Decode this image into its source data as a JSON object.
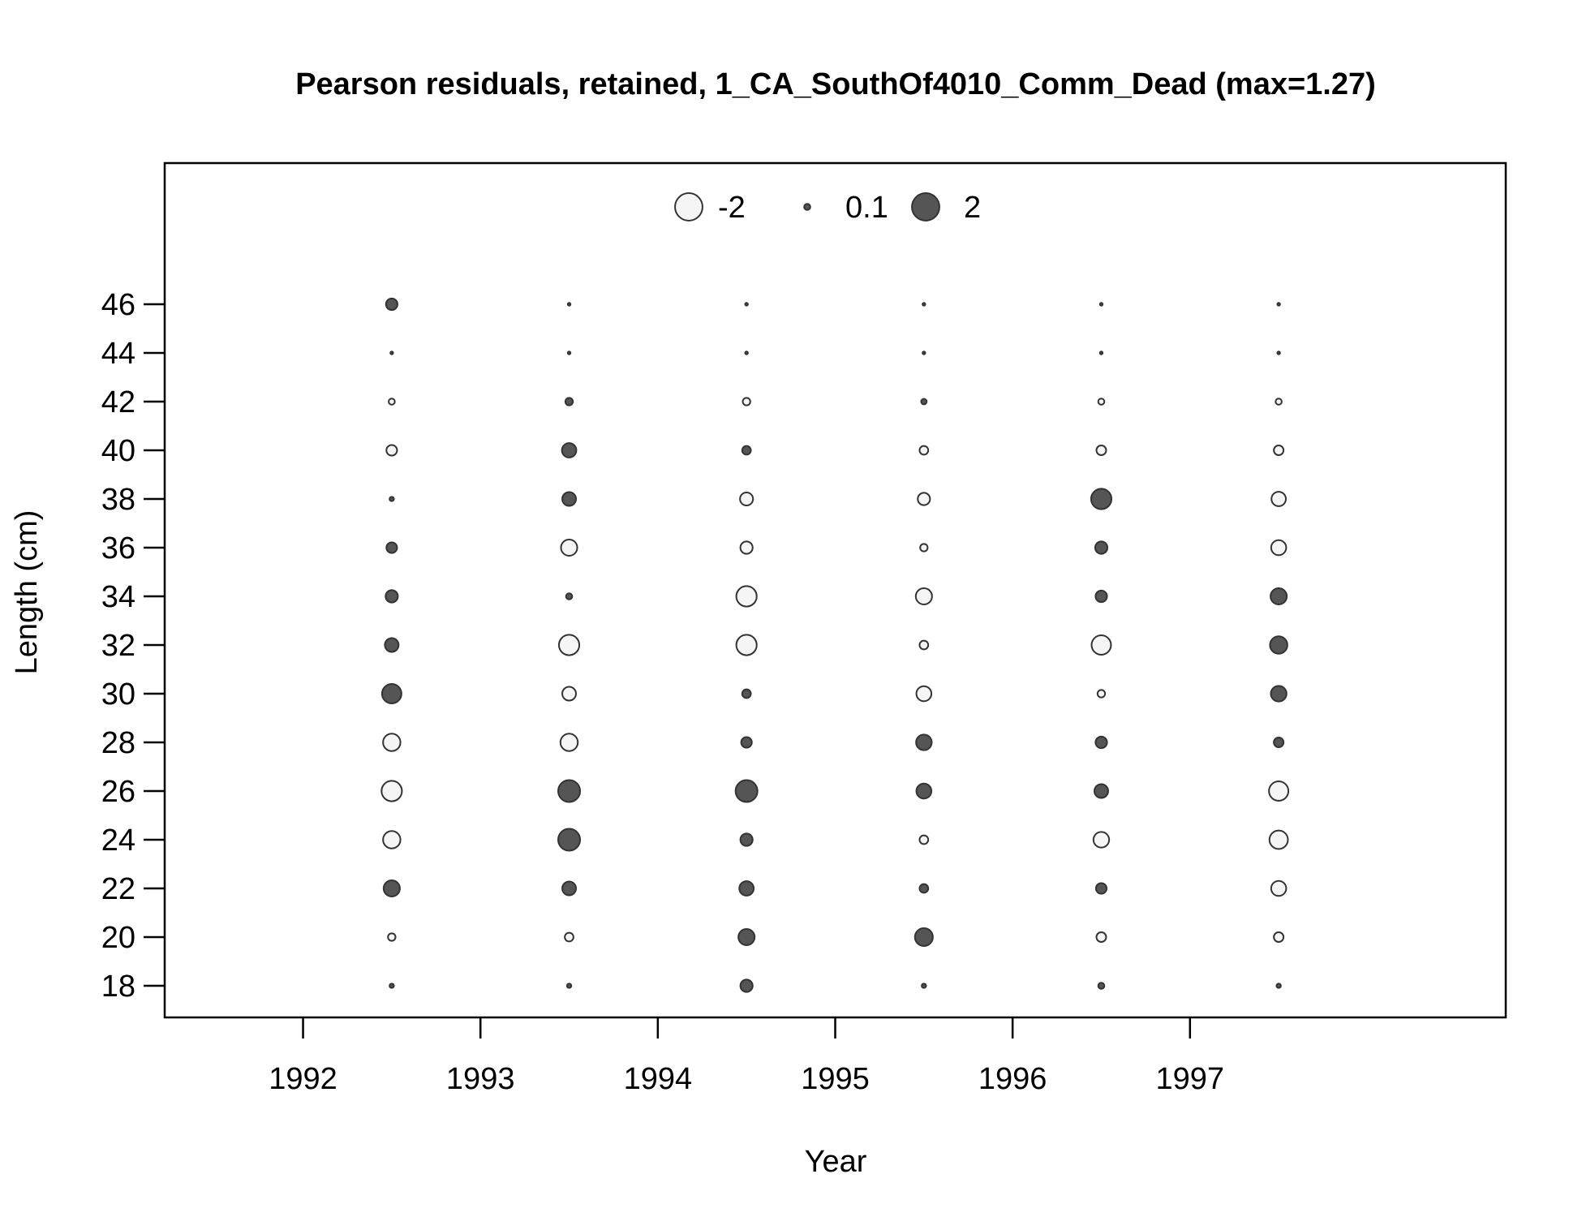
{
  "chart_data": {
    "type": "scatter",
    "subtype": "bubble",
    "title": "Pearson residuals, retained, 1_CA_SouthOf4010_Comm_Dead (max=1.27)",
    "xlabel": "Year",
    "ylabel": "Length (cm)",
    "xlim": [
      1991.22,
      1998.78
    ],
    "ylim": [
      16.7,
      51.8
    ],
    "x_ticks": [
      1992,
      1993,
      1994,
      1995,
      1996,
      1997
    ],
    "y_ticks": [
      18,
      20,
      22,
      24,
      26,
      28,
      30,
      32,
      34,
      36,
      38,
      40,
      42,
      44,
      46
    ],
    "grid": false,
    "legend": {
      "position": "top-center",
      "entries": [
        {
          "label": "-2",
          "value": -2
        },
        {
          "label": "0.1",
          "value": 0.1
        },
        {
          "label": "2",
          "value": 2
        }
      ]
    },
    "colors": {
      "positive": "#555555",
      "negative": "#f5f5f5",
      "outline": "#333333"
    },
    "x": [
      1992.5,
      1993.5,
      1994.5,
      1995.5,
      1996.5,
      1997.5
    ],
    "lengths": [
      18,
      20,
      22,
      24,
      26,
      28,
      30,
      32,
      34,
      36,
      38,
      40,
      42,
      44,
      46
    ],
    "residuals": [
      [
        0.05,
        -0.15,
        0.7,
        -0.8,
        -1.1,
        -0.8,
        1.0,
        0.5,
        0.4,
        0.3,
        0.05,
        -0.3,
        -0.1,
        0.02,
        0.35
      ],
      [
        0.05,
        -0.2,
        0.5,
        1.27,
        1.27,
        -0.8,
        -0.5,
        -1.1,
        0.1,
        -0.7,
        0.5,
        0.55,
        0.15,
        0.02,
        0.02
      ],
      [
        0.4,
        0.7,
        0.55,
        0.4,
        1.27,
        0.3,
        0.2,
        -1.1,
        -1.1,
        -0.4,
        -0.45,
        0.2,
        -0.15,
        0.02,
        0.02
      ],
      [
        0.05,
        0.85,
        0.2,
        -0.2,
        0.6,
        0.65,
        -0.6,
        -0.2,
        -0.7,
        -0.15,
        -0.4,
        -0.2,
        0.08,
        0.02,
        0.02
      ],
      [
        0.1,
        -0.25,
        0.3,
        -0.65,
        0.5,
        0.35,
        -0.15,
        -1.0,
        0.35,
        0.4,
        1.1,
        -0.25,
        -0.1,
        0.02,
        0.02
      ],
      [
        0.05,
        -0.25,
        -0.6,
        -0.9,
        -1.0,
        0.25,
        0.65,
        0.8,
        0.7,
        -0.6,
        -0.55,
        -0.25,
        -0.1,
        0.02,
        0.02
      ]
    ]
  }
}
